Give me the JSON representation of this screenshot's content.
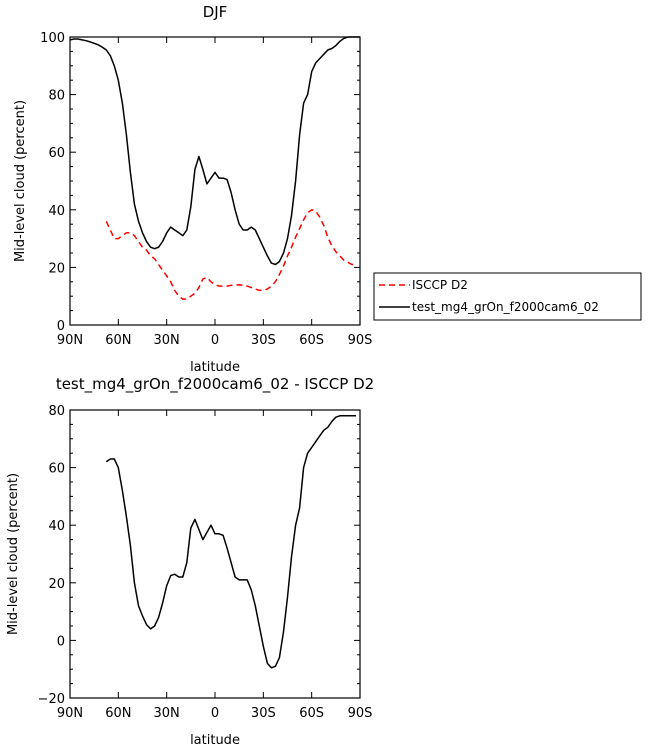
{
  "chart_data": [
    {
      "type": "line",
      "title": "DJF",
      "xlabel": "latitude",
      "ylabel": "Mid-level cloud (percent)",
      "xlim": [
        90,
        -90
      ],
      "ylim": [
        0,
        100
      ],
      "xticks": [
        90,
        60,
        30,
        0,
        -30,
        -60,
        -90
      ],
      "xtick_labels": [
        "90N",
        "60N",
        "30N",
        "0",
        "30S",
        "60S",
        "90S"
      ],
      "yticks": [
        0,
        20,
        40,
        60,
        80,
        100
      ],
      "ytick_labels": [
        "0",
        "20",
        "40",
        "60",
        "80",
        "100"
      ],
      "legend_position": "right",
      "series": [
        {
          "name": "ISCCP D2",
          "color": "#ff0000",
          "dash": "dashed",
          "x": [
            67.5,
            65,
            62.5,
            60,
            57.5,
            55,
            52.5,
            50,
            47.5,
            45,
            42.5,
            40,
            37.5,
            35,
            32.5,
            30,
            27.5,
            25,
            22.5,
            20,
            17.5,
            15,
            12.5,
            10,
            7.5,
            5,
            2.5,
            0,
            -2.5,
            -5,
            -7.5,
            -10,
            -15,
            -20,
            -25,
            -27.5,
            -30,
            -32.5,
            -35,
            -37.5,
            -40,
            -42.5,
            -45,
            -47.5,
            -50,
            -52.5,
            -55,
            -57.5,
            -60,
            -62.5,
            -65,
            -67.5,
            -70,
            -72.5,
            -75,
            -80,
            -85,
            -87.5
          ],
          "y": [
            36,
            33,
            30,
            30,
            31,
            32,
            32,
            31,
            29,
            27,
            26,
            24,
            23,
            21,
            19,
            17,
            15,
            12,
            10,
            9,
            9,
            10,
            11,
            13,
            16,
            16.5,
            15,
            14,
            13.5,
            13.5,
            13.5,
            13.8,
            14,
            13.5,
            12.5,
            12,
            12,
            12.5,
            13.5,
            15,
            17.5,
            20.5,
            24,
            27,
            30.5,
            33.5,
            36.5,
            39,
            40,
            39.5,
            37.5,
            34.5,
            30.5,
            27.5,
            25.5,
            22.5,
            21,
            21
          ]
        },
        {
          "name": "test_mg4_grOn_f2000cam6_02",
          "color": "#000000",
          "dash": "solid",
          "x": [
            90,
            87.5,
            85,
            82.5,
            80,
            77.5,
            75,
            72.5,
            70,
            67.5,
            65,
            62.5,
            60,
            57.5,
            55,
            52.5,
            50,
            47.5,
            45,
            42.5,
            40,
            37.5,
            35,
            32.5,
            30,
            27.5,
            25,
            22.5,
            20,
            17.5,
            15,
            12.5,
            10,
            7.5,
            5,
            2.5,
            0,
            -2.5,
            -5,
            -7.5,
            -10,
            -12.5,
            -15,
            -17.5,
            -20,
            -22.5,
            -25,
            -27.5,
            -30,
            -32.5,
            -35,
            -37.5,
            -40,
            -42.5,
            -45,
            -47.5,
            -50,
            -52.5,
            -55,
            -57.5,
            -60,
            -62.5,
            -65,
            -67.5,
            -70,
            -72.5,
            -75,
            -77.5,
            -80,
            -82.5,
            -85,
            -87.5,
            -90
          ],
          "y": [
            99,
            99.3,
            99.3,
            99,
            98.7,
            98.3,
            97.8,
            97.3,
            96.5,
            95.5,
            93.5,
            90,
            85,
            77,
            66,
            53,
            42,
            36,
            32,
            29,
            27,
            26.5,
            27,
            29,
            32,
            34,
            33,
            32,
            31,
            33,
            41,
            54,
            58.5,
            54,
            49,
            51,
            53,
            51,
            51,
            50.5,
            46,
            40,
            35,
            33,
            33,
            34,
            33,
            30,
            27,
            24,
            21.5,
            21,
            22,
            25,
            30,
            38,
            50,
            66,
            77,
            80,
            88,
            91,
            92.5,
            94,
            95.5,
            96,
            97,
            98.5,
            99.5,
            100,
            100,
            100,
            100
          ]
        }
      ]
    },
    {
      "type": "line",
      "title": "test_mg4_grOn_f2000cam6_02 - ISCCP D2",
      "xlabel": "latitude",
      "ylabel": "Mid-level cloud (percent)",
      "xlim": [
        90,
        -90
      ],
      "ylim": [
        -20,
        80
      ],
      "xticks": [
        90,
        60,
        30,
        0,
        -30,
        -60,
        -90
      ],
      "xtick_labels": [
        "90N",
        "60N",
        "30N",
        "0",
        "30S",
        "60S",
        "90S"
      ],
      "yticks": [
        -20,
        0,
        20,
        40,
        60,
        80
      ],
      "ytick_labels": [
        "−20",
        "0",
        "20",
        "40",
        "60",
        "80"
      ],
      "series": [
        {
          "color": "#000000",
          "dash": "solid",
          "x": [
            67.5,
            65,
            62.5,
            60,
            57.5,
            55,
            52.5,
            50,
            47.5,
            45,
            42.5,
            40,
            37.5,
            35,
            32.5,
            30,
            27.5,
            25,
            22.5,
            20,
            17.5,
            15,
            12.5,
            10,
            7.5,
            5,
            2.5,
            0,
            -2.5,
            -5,
            -7.5,
            -10,
            -12.5,
            -15,
            -17.5,
            -20,
            -22.5,
            -25,
            -27.5,
            -30,
            -32.5,
            -35,
            -37.5,
            -40,
            -42.5,
            -45,
            -47.5,
            -50,
            -52.5,
            -55,
            -57.5,
            -60,
            -62.5,
            -65,
            -67.5,
            -70,
            -72.5,
            -75,
            -77.5,
            -80,
            -82.5,
            -85,
            -87.5
          ],
          "y": [
            62,
            63,
            63,
            60,
            52,
            43,
            33,
            20,
            12,
            8.5,
            5.5,
            4,
            5,
            8,
            13,
            19,
            22.5,
            23,
            22,
            22,
            27,
            39,
            42,
            38.5,
            35,
            37.5,
            40,
            37,
            37,
            36.5,
            32,
            27,
            22,
            21,
            21,
            21,
            17.5,
            12,
            5,
            -2,
            -8,
            -9.5,
            -9,
            -6,
            3,
            15,
            29,
            40,
            46,
            60,
            65,
            67,
            69,
            71,
            73,
            74,
            76,
            77.5,
            78,
            78,
            78,
            78,
            78
          ]
        }
      ]
    }
  ]
}
